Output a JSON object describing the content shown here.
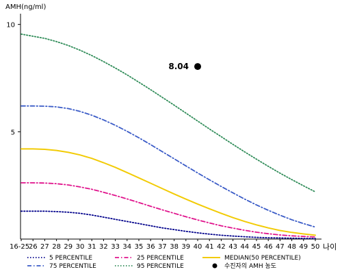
{
  "chart_data": {
    "type": "line",
    "ylabel": "AMH(ng/ml)",
    "xunit": "나이",
    "ylim": [
      0,
      10.5
    ],
    "yticks": [
      5,
      10
    ],
    "x": [
      "16-25",
      "26",
      "27",
      "28",
      "29",
      "30",
      "31",
      "32",
      "33",
      "34",
      "35",
      "36",
      "37",
      "38",
      "39",
      "40",
      "41",
      "42",
      "43",
      "44",
      "45",
      "46",
      "47",
      "48",
      "49",
      "50"
    ],
    "grid": false,
    "legend_position": "bottom",
    "series": [
      {
        "name": "5 PERCENTILE",
        "color": "#00008b",
        "dash": "dot",
        "values": [
          1.3,
          1.3,
          1.3,
          1.28,
          1.25,
          1.2,
          1.12,
          1.02,
          0.92,
          0.82,
          0.72,
          0.62,
          0.52,
          0.44,
          0.36,
          0.29,
          0.23,
          0.18,
          0.14,
          0.11,
          0.08,
          0.06,
          0.05,
          0.04,
          0.03,
          0.03
        ]
      },
      {
        "name": "25 PERCENTILE",
        "color": "#e0138c",
        "dash": "dashdot",
        "values": [
          2.62,
          2.62,
          2.61,
          2.58,
          2.52,
          2.43,
          2.32,
          2.18,
          2.03,
          1.87,
          1.7,
          1.53,
          1.36,
          1.2,
          1.04,
          0.89,
          0.75,
          0.62,
          0.51,
          0.41,
          0.32,
          0.25,
          0.19,
          0.15,
          0.12,
          0.1
        ]
      },
      {
        "name": "MEDIAN(50 PERCENTILE)",
        "color": "#f2cb05",
        "dash": "solid",
        "values": [
          4.2,
          4.2,
          4.18,
          4.13,
          4.04,
          3.92,
          3.76,
          3.56,
          3.34,
          3.1,
          2.85,
          2.6,
          2.35,
          2.1,
          1.86,
          1.63,
          1.41,
          1.2,
          1.0,
          0.82,
          0.66,
          0.52,
          0.4,
          0.31,
          0.24,
          0.18
        ]
      },
      {
        "name": "75 PERCENTILE",
        "color": "#3a5bc7",
        "dash": "dashdot",
        "values": [
          6.2,
          6.2,
          6.19,
          6.16,
          6.08,
          5.95,
          5.77,
          5.55,
          5.3,
          5.02,
          4.72,
          4.4,
          4.07,
          3.74,
          3.41,
          3.08,
          2.76,
          2.45,
          2.15,
          1.86,
          1.59,
          1.34,
          1.11,
          0.9,
          0.72,
          0.56
        ]
      },
      {
        "name": "95 PERCENTILE",
        "color": "#2e8b57",
        "dash": "dot",
        "values": [
          9.55,
          9.45,
          9.35,
          9.2,
          9.02,
          8.8,
          8.55,
          8.27,
          7.97,
          7.65,
          7.31,
          6.96,
          6.6,
          6.24,
          5.87,
          5.5,
          5.13,
          4.77,
          4.41,
          4.06,
          3.72,
          3.39,
          3.07,
          2.77,
          2.48,
          2.2
        ]
      }
    ],
    "highlight_point": {
      "name": "수진자의 AMH 농도",
      "x": "40",
      "y": 8.04,
      "label": "8.04",
      "color": "#000000"
    },
    "legend_rows": [
      [
        "5 PERCENTILE",
        "25 PERCENTILE",
        "MEDIAN(50 PERCENTILE)"
      ],
      [
        "75 PERCENTILE",
        "95 PERCENTILE",
        "수진자의 AMH 농도"
      ]
    ]
  }
}
